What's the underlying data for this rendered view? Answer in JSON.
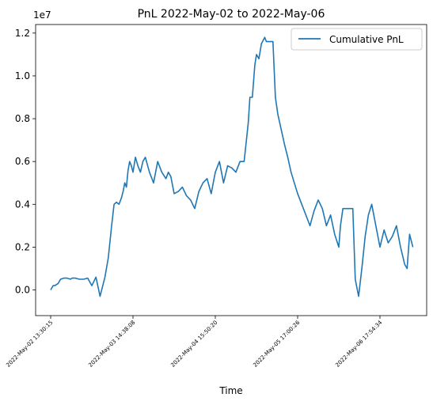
{
  "chart_data": {
    "type": "line",
    "title": "PnL 2022-May-02 to 2022-May-06",
    "xlabel": "Time",
    "ylabel": "",
    "y_offset_label": "1e7",
    "ylim": [
      -0.12,
      1.24
    ],
    "y_ticks": [
      0.0,
      0.2,
      0.4,
      0.6,
      0.8,
      1.0,
      1.2
    ],
    "y_tick_labels": [
      "0.0",
      "0.2",
      "0.4",
      "0.6",
      "0.8",
      "1.0",
      "1.2"
    ],
    "x_tick_labels": [
      "2022-May-02 13:30:15",
      "2022-May-03 14:38:08",
      "2022-May-04 15:50:20",
      "2022-May-05 17:00:26",
      "2022-May-06 17:54:34"
    ],
    "grid": false,
    "legend_position": "upper right",
    "color": "#1f77b4",
    "series": [
      {
        "name": "Cumulative PnL",
        "x": [
          0.0,
          0.03,
          0.05,
          0.09,
          0.12,
          0.16,
          0.2,
          0.24,
          0.26,
          0.3,
          0.35,
          0.4,
          0.45,
          0.5,
          0.55,
          0.6,
          0.66,
          0.7,
          0.74,
          0.77,
          0.8,
          0.83,
          0.86,
          0.88,
          0.9,
          0.92,
          0.94,
          0.96,
          0.98,
          1.0,
          1.03,
          1.06,
          1.09,
          1.12,
          1.15,
          1.2,
          1.25,
          1.3,
          1.35,
          1.4,
          1.43,
          1.46,
          1.5,
          1.55,
          1.6,
          1.65,
          1.7,
          1.75,
          1.8,
          1.85,
          1.9,
          1.95,
          2.0,
          2.05,
          2.1,
          2.15,
          2.2,
          2.25,
          2.3,
          2.35,
          2.4,
          2.42,
          2.45,
          2.48,
          2.5,
          2.53,
          2.56,
          2.6,
          2.62,
          2.64,
          2.66,
          2.7,
          2.73,
          2.76,
          2.8,
          2.84,
          2.88,
          2.92,
          2.96,
          3.0,
          3.05,
          3.1,
          3.15,
          3.2,
          3.25,
          3.3,
          3.35,
          3.4,
          3.45,
          3.5,
          3.52,
          3.55,
          3.58,
          3.61,
          3.64,
          3.67,
          3.7,
          3.74,
          3.78,
          3.82,
          3.86,
          3.9,
          3.95,
          4.0,
          4.05,
          4.1,
          4.15,
          4.2,
          4.25,
          4.3,
          4.33,
          4.36,
          4.4
        ],
        "values": [
          0.0,
          0.02,
          0.02,
          0.03,
          0.05,
          0.055,
          0.055,
          0.05,
          0.055,
          0.055,
          0.05,
          0.05,
          0.055,
          0.02,
          0.06,
          -0.03,
          0.06,
          0.15,
          0.3,
          0.4,
          0.41,
          0.4,
          0.43,
          0.46,
          0.5,
          0.48,
          0.56,
          0.6,
          0.58,
          0.55,
          0.62,
          0.58,
          0.55,
          0.6,
          0.62,
          0.55,
          0.5,
          0.6,
          0.55,
          0.52,
          0.55,
          0.53,
          0.45,
          0.46,
          0.48,
          0.44,
          0.42,
          0.38,
          0.46,
          0.5,
          0.52,
          0.45,
          0.55,
          0.6,
          0.5,
          0.58,
          0.57,
          0.55,
          0.6,
          0.6,
          0.78,
          0.9,
          0.9,
          1.05,
          1.1,
          1.08,
          1.15,
          1.18,
          1.16,
          1.16,
          1.16,
          1.16,
          0.9,
          0.82,
          0.75,
          0.68,
          0.62,
          0.55,
          0.5,
          0.45,
          0.4,
          0.35,
          0.3,
          0.37,
          0.42,
          0.38,
          0.3,
          0.35,
          0.26,
          0.2,
          0.3,
          0.38,
          0.38,
          0.38,
          0.38,
          0.38,
          0.05,
          -0.03,
          0.1,
          0.25,
          0.35,
          0.4,
          0.3,
          0.2,
          0.28,
          0.22,
          0.25,
          0.3,
          0.2,
          0.12,
          0.1,
          0.26,
          0.2
        ]
      }
    ]
  }
}
